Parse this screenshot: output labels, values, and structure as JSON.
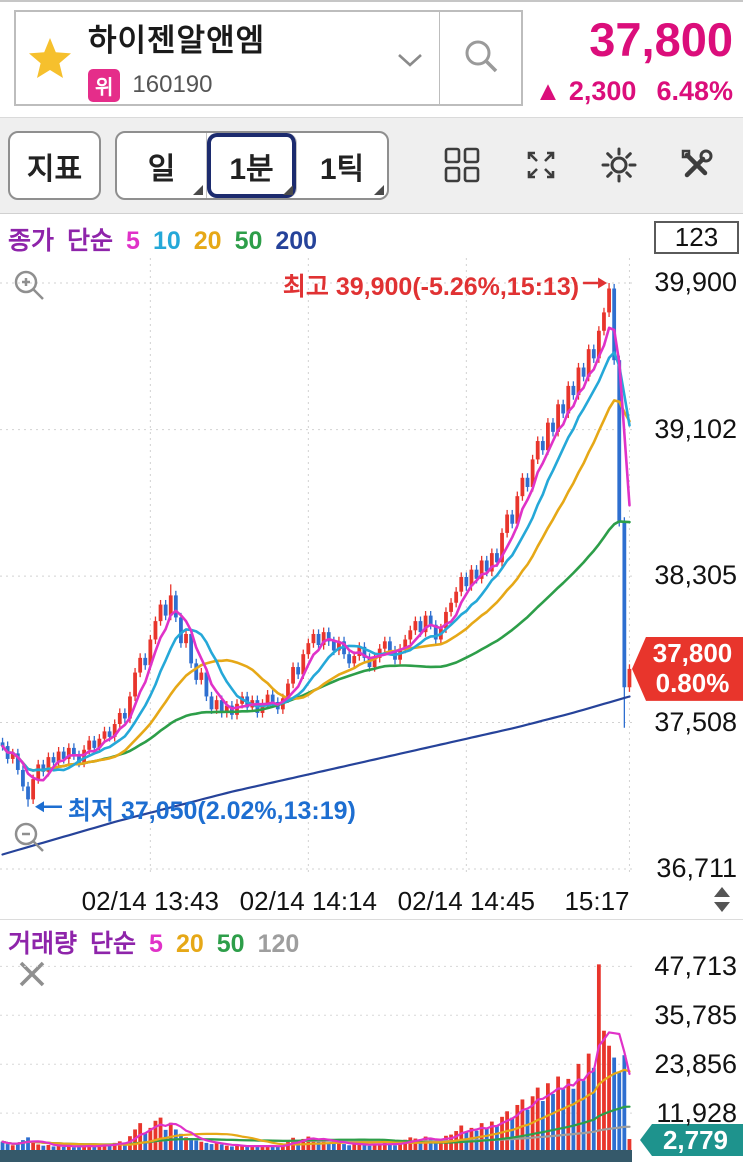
{
  "header": {
    "stock_name": "하이젠알앤엠",
    "market_badge": "위",
    "stock_code": "160190",
    "price": "37,800",
    "change_arrow": "▲",
    "change_value": "2,300",
    "change_percent": "6.48%",
    "icons": {
      "favorite": "star-icon",
      "dropdown": "chevron-down-icon",
      "search": "search-icon"
    }
  },
  "toolbar": {
    "indicator_button": "지표",
    "timeframes": [
      {
        "label": "일",
        "selected": false
      },
      {
        "label": "1분",
        "selected": true
      },
      {
        "label": "1틱",
        "selected": false
      }
    ],
    "icons": [
      "grid-layout-icon",
      "expand-icon",
      "settings-icon",
      "tools-icon"
    ]
  },
  "main_chart": {
    "count_label": "123"
  },
  "colors": {
    "accent": "#db0e7b",
    "up": "#e8352c",
    "down": "#2e6fd0",
    "legend_title": "#8e24aa",
    "scrollbar": "#35596a"
  },
  "chart_data": [
    {
      "type": "candlestick",
      "title": "1-minute candle chart",
      "legend": {
        "title": "종가",
        "subtitle": "단순",
        "title_color": "#8e24aa",
        "items": [
          {
            "label": "5",
            "color": "#e032c8"
          },
          {
            "label": "10",
            "color": "#25a8d8"
          },
          {
            "label": "20",
            "color": "#e6a817"
          },
          {
            "label": "50",
            "color": "#2d9e49"
          },
          {
            "label": "200",
            "color": "#26439a"
          }
        ]
      },
      "y_ticks": [
        39900,
        39102,
        38305,
        37508,
        36711
      ],
      "x_gridline_labels": [
        "02/14 13:43",
        "02/14 14:14",
        "02/14 14:45",
        "15:17"
      ],
      "x_gridline_indices": [
        29,
        60,
        91,
        123
      ],
      "interval": "1분",
      "first_open": 37400,
      "wick_pad": 25,
      "closes": [
        37380,
        37310,
        37340,
        37250,
        37160,
        37090,
        37200,
        37280,
        37240,
        37320,
        37290,
        37350,
        37310,
        37370,
        37330,
        37290,
        37360,
        37410,
        37370,
        37420,
        37460,
        37430,
        37500,
        37560,
        37530,
        37650,
        37780,
        37860,
        37820,
        37960,
        38060,
        38150,
        38090,
        38200,
        38080,
        37940,
        37990,
        37830,
        37740,
        37780,
        37650,
        37580,
        37630,
        37560,
        37600,
        37550,
        37610,
        37650,
        37590,
        37630,
        37560,
        37610,
        37660,
        37620,
        37580,
        37640,
        37720,
        37810,
        37770,
        37880,
        37940,
        37990,
        37930,
        38000,
        37950,
        37900,
        37950,
        37880,
        37830,
        37870,
        37920,
        37860,
        37810,
        37860,
        37910,
        37950,
        37900,
        37850,
        37910,
        37960,
        38010,
        38060,
        38000,
        38090,
        38040,
        37960,
        38020,
        38110,
        38160,
        38220,
        38300,
        38250,
        38340,
        38290,
        38390,
        38330,
        38430,
        38380,
        38540,
        38640,
        38590,
        38740,
        38840,
        38790,
        38940,
        39040,
        38990,
        39140,
        39090,
        39240,
        39190,
        39340,
        39290,
        39440,
        39390,
        39540,
        39490,
        39640,
        39740,
        39870,
        39480,
        38600,
        37700,
        37800
      ],
      "high_overrides": {
        "33": 38260,
        "119": 39900
      },
      "low_overrides": {
        "5": 37050,
        "122": 37480
      },
      "ma_periods": [
        5,
        10,
        20,
        50
      ],
      "ma_colors": [
        "#e032c8",
        "#25a8d8",
        "#e6a817",
        "#2d9e49"
      ],
      "ma200_color": "#26439a",
      "ma200_points": [
        36790,
        36880,
        36970,
        37050,
        37130,
        37200,
        37270,
        37340,
        37410,
        37480,
        37560,
        37650
      ],
      "annotations": {
        "high": {
          "label": "최고 39,900(-5.26%,15:13)",
          "value": 39900,
          "time": "15:13",
          "index": 119,
          "color": "#e03233"
        },
        "low": {
          "label": "최저 37,050(2.02%,13:19)",
          "value": 37050,
          "time": "13:19",
          "index": 5,
          "color": "#1d6ed1"
        }
      },
      "price_marker": {
        "price": "37,800",
        "percent": "0.80%"
      }
    },
    {
      "type": "bar",
      "title": "volume",
      "legend": {
        "title": "거래량",
        "subtitle": "단순",
        "title_color": "#8e24aa",
        "items": [
          {
            "label": "5",
            "color": "#e032c8"
          },
          {
            "label": "20",
            "color": "#e6a817"
          },
          {
            "label": "50",
            "color": "#2d9e49"
          },
          {
            "label": "120",
            "color": "#9e9e9e"
          }
        ]
      },
      "y_ticks": [
        47713,
        35785,
        23856,
        11928
      ],
      "current_badge": "2,779",
      "values": [
        2100,
        1500,
        1200,
        1800,
        2500,
        3200,
        2000,
        1400,
        1100,
        1300,
        900,
        1100,
        800,
        1200,
        700,
        900,
        1000,
        1300,
        800,
        1100,
        1500,
        1200,
        1800,
        2200,
        1600,
        3500,
        5200,
        6800,
        4200,
        5600,
        7400,
        8200,
        5100,
        6900,
        5200,
        4100,
        3200,
        2800,
        2400,
        2100,
        1800,
        1500,
        1700,
        1400,
        1100,
        900,
        1200,
        1000,
        800,
        1100,
        900,
        1200,
        1000,
        900,
        800,
        1100,
        2400,
        3100,
        2200,
        2800,
        3400,
        3000,
        2100,
        2600,
        1900,
        2200,
        1800,
        1500,
        1200,
        1400,
        1700,
        1300,
        1100,
        1400,
        1600,
        1800,
        1500,
        1200,
        1600,
        2600,
        3200,
        2900,
        2300,
        3400,
        2700,
        2100,
        2500,
        3600,
        3900,
        4800,
        6200,
        4500,
        5600,
        4900,
        6800,
        5400,
        7200,
        6100,
        8400,
        9800,
        8200,
        11400,
        12800,
        10200,
        13600,
        15800,
        12400,
        16900,
        14200,
        18600,
        15400,
        18000,
        15500,
        21800,
        17600,
        24400,
        20800,
        47000,
        30200,
        26400,
        23400,
        19800,
        24000,
        2779
      ],
      "ma_periods": [
        5,
        20,
        50,
        120
      ],
      "ma_colors": [
        "#e032c8",
        "#e6a817",
        "#2d9e49",
        "#9e9e9e"
      ]
    }
  ]
}
